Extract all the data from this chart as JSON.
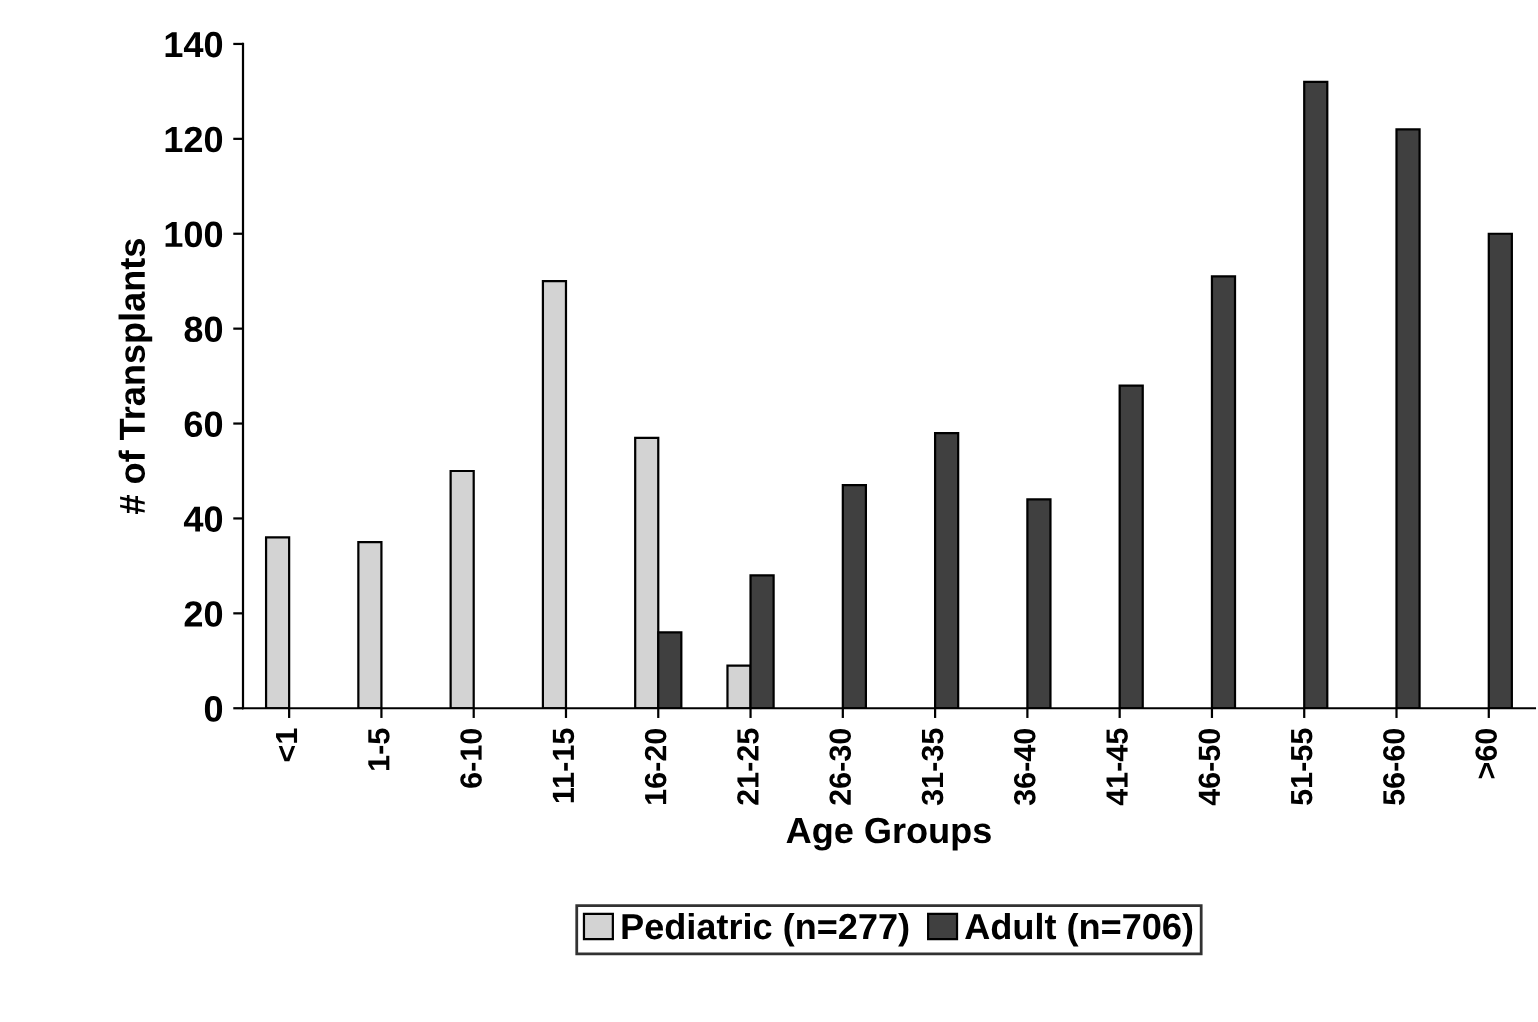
{
  "chart_data": {
    "type": "bar",
    "xlabel": "Age Groups",
    "ylabel": "# of Transplants",
    "categories": [
      "<1",
      "1-5",
      "6-10",
      "11-15",
      "16-20",
      "21-25",
      "26-30",
      "31-35",
      "36-40",
      "41-45",
      "46-50",
      "51-55",
      "56-60",
      ">60"
    ],
    "series": [
      {
        "name": "Pediatric (n=277)",
        "color": "#d3d3d3",
        "values": [
          36,
          35,
          50,
          90,
          57,
          9,
          null,
          null,
          null,
          null,
          null,
          null,
          null,
          null
        ]
      },
      {
        "name": "Adult (n=706)",
        "color": "#404040",
        "values": [
          null,
          null,
          null,
          null,
          16,
          28,
          47,
          58,
          44,
          68,
          91,
          132,
          122,
          100
        ]
      }
    ],
    "ylim": [
      0,
      140
    ],
    "yticks": [
      0,
      20,
      40,
      60,
      80,
      100,
      120,
      140
    ],
    "grid": false,
    "legend": "bottom"
  }
}
